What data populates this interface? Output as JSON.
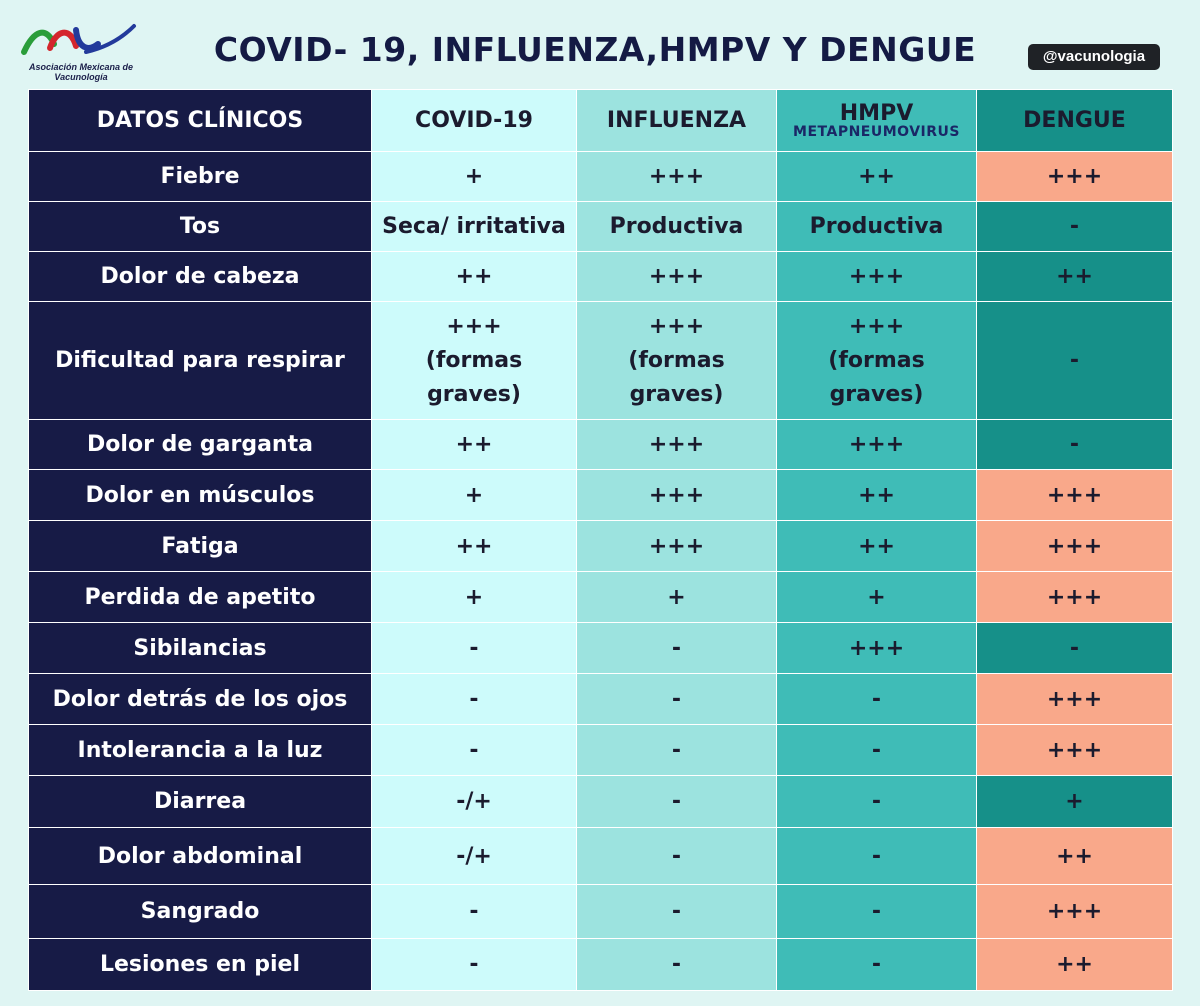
{
  "logo": {
    "org_name": "Asociación Mexicana de Vacunología"
  },
  "title": "COVID- 19, INFLUENZA,HMPV Y DENGUE",
  "handle": "@vacunologia",
  "table": {
    "headers": {
      "label": "DATOS CLÍNICOS",
      "covid": "COVID-19",
      "flu": "INFLUENZA",
      "hmpv": "HMPV",
      "hmpv_sub": "METAPNEUMOVIRUS",
      "dengue": "DENGUE"
    },
    "rows": [
      {
        "label": "Fiebre",
        "covid": "+",
        "flu": "+++",
        "hmpv": "++",
        "dengue": "+++",
        "dengue_highlight": true
      },
      {
        "label": "Tos",
        "covid": "Seca/ irritativa",
        "flu": "Productiva",
        "hmpv": "Productiva",
        "dengue": "-",
        "dengue_highlight": false
      },
      {
        "label": "Dolor de cabeza",
        "covid": "++",
        "flu": "+++",
        "hmpv": "+++",
        "dengue": "++",
        "dengue_highlight": false
      },
      {
        "label": "Dificultad para respirar",
        "covid": [
          "+++",
          "(formas",
          "graves)"
        ],
        "flu": [
          "+++",
          "(formas",
          "graves)"
        ],
        "hmpv": [
          "+++",
          "(formas",
          "graves)"
        ],
        "dengue": "-",
        "dengue_highlight": false
      },
      {
        "label": "Dolor de garganta",
        "covid": "++",
        "flu": "+++",
        "hmpv": "+++",
        "dengue": "-",
        "dengue_highlight": false
      },
      {
        "label": "Dolor en músculos",
        "covid": "+",
        "flu": "+++",
        "hmpv": "++",
        "dengue": "+++",
        "dengue_highlight": true
      },
      {
        "label": "Fatiga",
        "covid": "++",
        "flu": "+++",
        "hmpv": "++",
        "dengue": "+++",
        "dengue_highlight": true
      },
      {
        "label": "Perdida de apetito",
        "covid": "+",
        "flu": "+",
        "hmpv": "+",
        "dengue": "+++",
        "dengue_highlight": true
      },
      {
        "label": "Sibilancias",
        "covid": "-",
        "flu": "-",
        "hmpv": "+++",
        "dengue": "-",
        "dengue_highlight": false
      },
      {
        "label": "Dolor detrás de los ojos",
        "covid": "-",
        "flu": "-",
        "hmpv": "-",
        "dengue": "+++",
        "dengue_highlight": true
      },
      {
        "label": "Intolerancia a la luz",
        "covid": "-",
        "flu": "-",
        "hmpv": "-",
        "dengue": "+++",
        "dengue_highlight": true
      },
      {
        "label": "Diarrea",
        "covid": "-/+",
        "flu": "-",
        "hmpv": "-",
        "dengue": "+",
        "dengue_highlight": false
      },
      {
        "label": "Dolor abdominal",
        "covid": "-/+",
        "flu": "-",
        "hmpv": "-",
        "dengue": "++",
        "dengue_highlight": true
      },
      {
        "label": "Sangrado",
        "covid": "-",
        "flu": "-",
        "hmpv": "-",
        "dengue": "+++",
        "dengue_highlight": true
      },
      {
        "label": "Lesiones en piel",
        "covid": "-",
        "flu": "-",
        "hmpv": "-",
        "dengue": "++",
        "dengue_highlight": true
      }
    ]
  }
}
